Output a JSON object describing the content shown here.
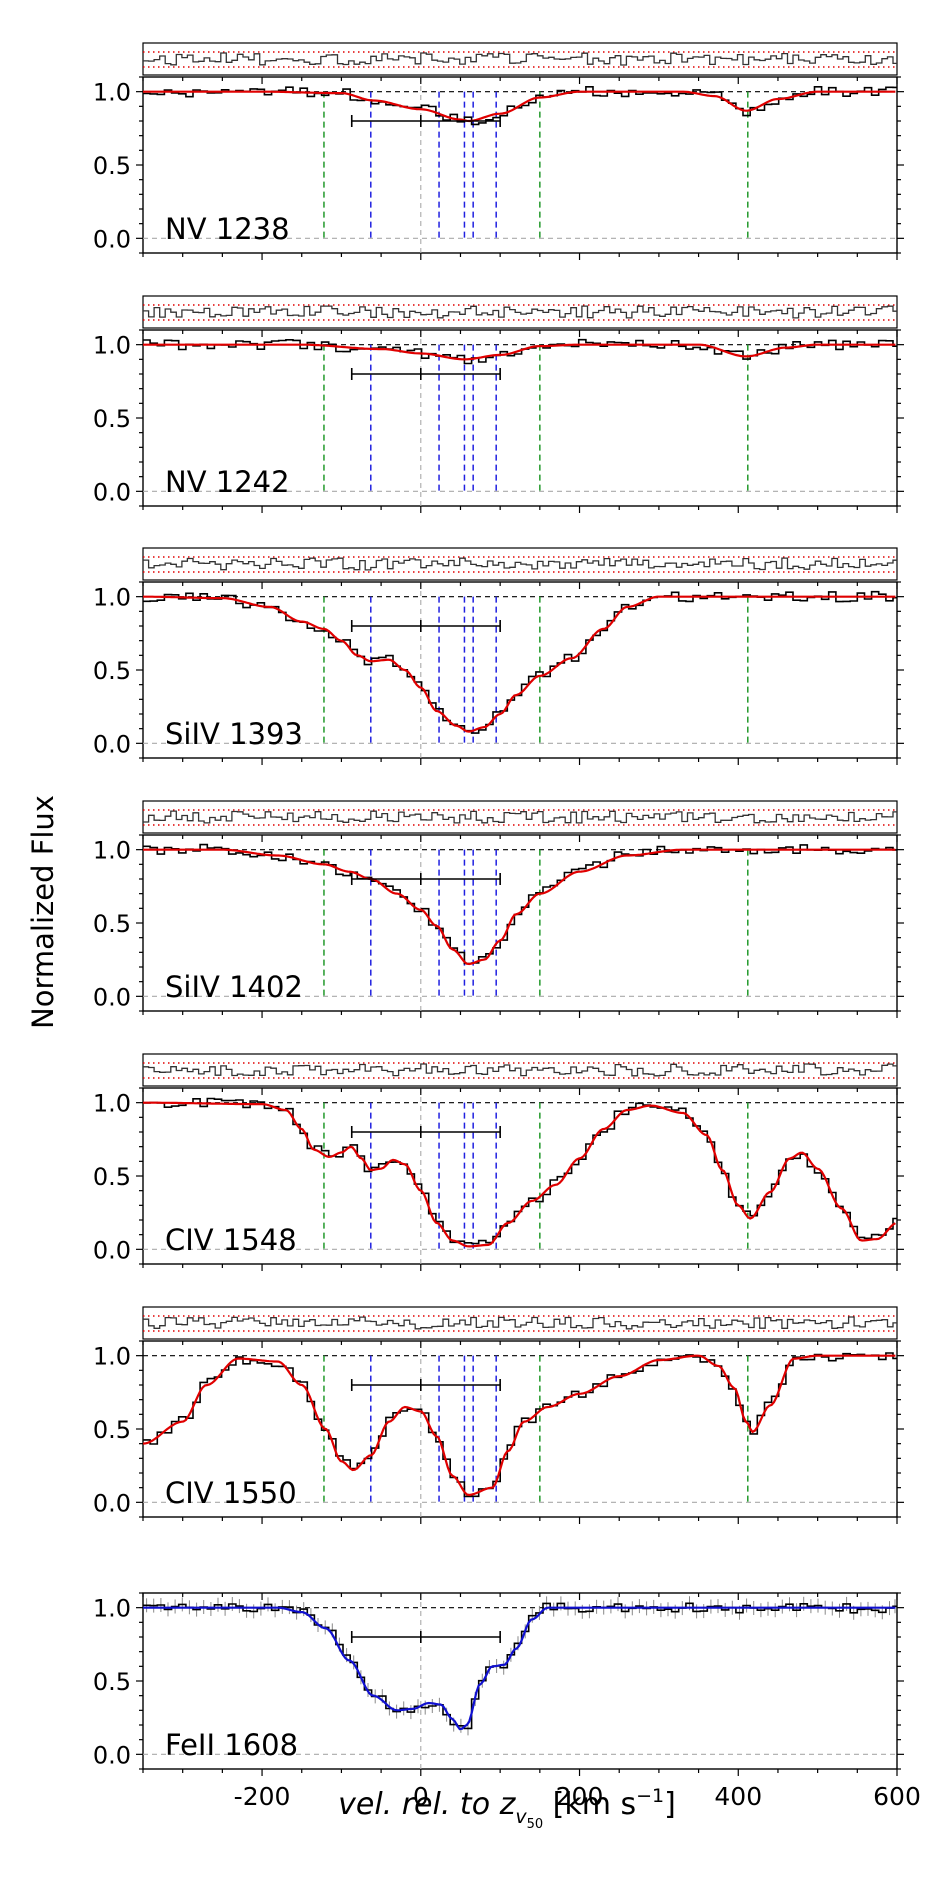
{
  "figure": {
    "ylabel": "Normalized Flux",
    "xlabel_main": "vel. rel. to z",
    "xlabel_sub": "v",
    "xlabel_subsub": "50",
    "xlabel_units_open": " [km s",
    "xlabel_units_exp": "−1",
    "xlabel_units_close": "]"
  },
  "colors": {
    "data": "#000000",
    "model_high": "#e00000",
    "model_low": "#1010d0",
    "component": "#2020e0",
    "window": "#22992b",
    "residual_band": "#e00000",
    "grey": "#aaaaaa"
  },
  "chart_data": {
    "type": "line",
    "xlim": [
      -350,
      600
    ],
    "ylim": [
      -0.1,
      1.1
    ],
    "xticks": [
      -200,
      0,
      200,
      400,
      600
    ],
    "xtick_labels": [
      "-200",
      "0",
      "200",
      "400",
      "600"
    ],
    "yticks": [
      0.0,
      0.5,
      1.0
    ],
    "ytick_labels": [
      "0.0",
      "0.5",
      "1.0"
    ],
    "component_velocities": [
      -63,
      23,
      55,
      66,
      95
    ],
    "window_velocities": [
      -122,
      150,
      412
    ],
    "velocity_range_bar": [
      -87,
      0,
      100
    ],
    "panels": [
      {
        "label": "NV 1238",
        "model": "red",
        "residuals": true,
        "model_points": [
          [
            -350,
            1.0
          ],
          [
            -200,
            1.0
          ],
          [
            -100,
            0.99
          ],
          [
            -60,
            0.94
          ],
          [
            0,
            0.88
          ],
          [
            50,
            0.81
          ],
          [
            60,
            0.8
          ],
          [
            100,
            0.85
          ],
          [
            150,
            0.96
          ],
          [
            200,
            1.0
          ],
          [
            330,
            1.0
          ],
          [
            370,
            0.97
          ],
          [
            410,
            0.87
          ],
          [
            450,
            0.95
          ],
          [
            500,
            1.0
          ],
          [
            600,
            1.0
          ]
        ]
      },
      {
        "label": "NV 1242",
        "model": "red",
        "residuals": true,
        "model_points": [
          [
            -350,
            1.0
          ],
          [
            -150,
            1.0
          ],
          [
            -50,
            0.97
          ],
          [
            0,
            0.94
          ],
          [
            55,
            0.9
          ],
          [
            100,
            0.93
          ],
          [
            150,
            0.99
          ],
          [
            200,
            1.0
          ],
          [
            350,
            1.0
          ],
          [
            410,
            0.92
          ],
          [
            460,
            0.98
          ],
          [
            500,
            1.0
          ],
          [
            600,
            1.0
          ]
        ]
      },
      {
        "label": "SiIV 1393",
        "model": "red",
        "residuals": true,
        "model_points": [
          [
            -350,
            1.0
          ],
          [
            -250,
            0.99
          ],
          [
            -190,
            0.93
          ],
          [
            -150,
            0.83
          ],
          [
            -122,
            0.78
          ],
          [
            -100,
            0.7
          ],
          [
            -80,
            0.6
          ],
          [
            -63,
            0.56
          ],
          [
            -40,
            0.57
          ],
          [
            -20,
            0.5
          ],
          [
            0,
            0.38
          ],
          [
            20,
            0.22
          ],
          [
            45,
            0.12
          ],
          [
            60,
            0.08
          ],
          [
            80,
            0.11
          ],
          [
            100,
            0.2
          ],
          [
            120,
            0.33
          ],
          [
            150,
            0.46
          ],
          [
            190,
            0.58
          ],
          [
            230,
            0.78
          ],
          [
            260,
            0.93
          ],
          [
            300,
            1.0
          ],
          [
            600,
            1.0
          ]
        ]
      },
      {
        "label": "SiIV 1402",
        "model": "red",
        "residuals": true,
        "model_points": [
          [
            -350,
            1.0
          ],
          [
            -250,
            1.0
          ],
          [
            -180,
            0.96
          ],
          [
            -122,
            0.9
          ],
          [
            -90,
            0.85
          ],
          [
            -63,
            0.8
          ],
          [
            -30,
            0.7
          ],
          [
            0,
            0.59
          ],
          [
            20,
            0.48
          ],
          [
            40,
            0.32
          ],
          [
            60,
            0.22
          ],
          [
            80,
            0.25
          ],
          [
            100,
            0.38
          ],
          [
            120,
            0.56
          ],
          [
            150,
            0.7
          ],
          [
            200,
            0.85
          ],
          [
            260,
            0.96
          ],
          [
            330,
            1.0
          ],
          [
            600,
            1.0
          ]
        ]
      },
      {
        "label": "CIV 1548",
        "model": "red",
        "residuals": true,
        "model_points": [
          [
            -350,
            1.0
          ],
          [
            -200,
            0.99
          ],
          [
            -170,
            0.95
          ],
          [
            -150,
            0.82
          ],
          [
            -135,
            0.68
          ],
          [
            -115,
            0.63
          ],
          [
            -100,
            0.66
          ],
          [
            -88,
            0.7
          ],
          [
            -75,
            0.62
          ],
          [
            -63,
            0.54
          ],
          [
            -50,
            0.55
          ],
          [
            -35,
            0.61
          ],
          [
            -20,
            0.58
          ],
          [
            0,
            0.4
          ],
          [
            20,
            0.18
          ],
          [
            40,
            0.06
          ],
          [
            60,
            0.02
          ],
          [
            85,
            0.03
          ],
          [
            110,
            0.18
          ],
          [
            140,
            0.33
          ],
          [
            170,
            0.44
          ],
          [
            200,
            0.62
          ],
          [
            230,
            0.82
          ],
          [
            260,
            0.95
          ],
          [
            290,
            0.98
          ],
          [
            330,
            0.93
          ],
          [
            360,
            0.78
          ],
          [
            380,
            0.54
          ],
          [
            400,
            0.3
          ],
          [
            415,
            0.21
          ],
          [
            440,
            0.39
          ],
          [
            465,
            0.62
          ],
          [
            480,
            0.66
          ],
          [
            500,
            0.55
          ],
          [
            530,
            0.28
          ],
          [
            555,
            0.06
          ],
          [
            575,
            0.07
          ],
          [
            600,
            0.18
          ]
        ]
      },
      {
        "label": "CIV 1550",
        "model": "red",
        "residuals": true,
        "model_points": [
          [
            -350,
            0.4
          ],
          [
            -300,
            0.55
          ],
          [
            -270,
            0.8
          ],
          [
            -230,
            0.98
          ],
          [
            -180,
            0.96
          ],
          [
            -150,
            0.8
          ],
          [
            -120,
            0.5
          ],
          [
            -100,
            0.28
          ],
          [
            -85,
            0.22
          ],
          [
            -63,
            0.32
          ],
          [
            -40,
            0.55
          ],
          [
            -20,
            0.65
          ],
          [
            0,
            0.62
          ],
          [
            20,
            0.45
          ],
          [
            40,
            0.18
          ],
          [
            60,
            0.05
          ],
          [
            90,
            0.1
          ],
          [
            110,
            0.35
          ],
          [
            130,
            0.55
          ],
          [
            160,
            0.65
          ],
          [
            200,
            0.74
          ],
          [
            250,
            0.86
          ],
          [
            300,
            0.97
          ],
          [
            350,
            1.0
          ],
          [
            375,
            0.93
          ],
          [
            395,
            0.78
          ],
          [
            410,
            0.55
          ],
          [
            418,
            0.48
          ],
          [
            440,
            0.66
          ],
          [
            470,
            0.98
          ],
          [
            500,
            1.0
          ],
          [
            600,
            1.0
          ]
        ]
      },
      {
        "label": "FeII 1608",
        "model": "blue",
        "residuals": false,
        "model_points": [
          [
            -350,
            1.0
          ],
          [
            -180,
            1.0
          ],
          [
            -150,
            0.97
          ],
          [
            -120,
            0.86
          ],
          [
            -90,
            0.64
          ],
          [
            -60,
            0.4
          ],
          [
            -30,
            0.3
          ],
          [
            -10,
            0.31
          ],
          [
            10,
            0.35
          ],
          [
            25,
            0.34
          ],
          [
            40,
            0.24
          ],
          [
            50,
            0.17
          ],
          [
            58,
            0.2
          ],
          [
            75,
            0.48
          ],
          [
            90,
            0.6
          ],
          [
            105,
            0.61
          ],
          [
            120,
            0.72
          ],
          [
            140,
            0.92
          ],
          [
            160,
            1.0
          ],
          [
            600,
            1.0
          ]
        ]
      }
    ]
  }
}
